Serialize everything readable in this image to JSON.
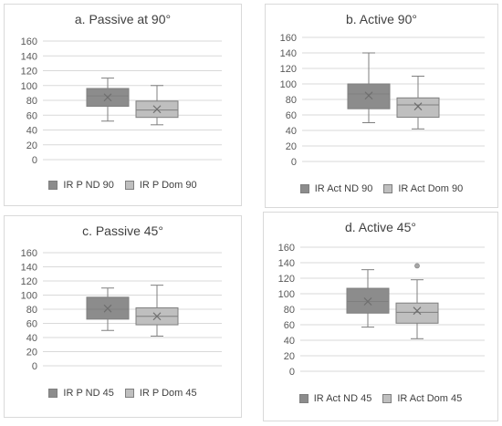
{
  "colors": {
    "nd": "#8c8c8c",
    "dom": "#bfbfbf",
    "grid": "#d9d9d9",
    "text": "#595959"
  },
  "chart_data": [
    {
      "type": "box",
      "title": "a. Passive at 90°",
      "ylim": [
        0,
        160
      ],
      "yticks": [
        "0",
        "20",
        "40",
        "60",
        "80",
        "100",
        "120",
        "140",
        "160"
      ],
      "grid": true,
      "legend_position": "bottom",
      "series": [
        {
          "name": "IR P ND 90",
          "min": 52,
          "q1": 72,
          "median": 86,
          "q3": 96,
          "max": 110,
          "mean": 84,
          "outliers": []
        },
        {
          "name": "IR P Dom 90",
          "min": 47,
          "q1": 57,
          "median": 67,
          "q3": 79,
          "max": 100,
          "mean": 68,
          "outliers": []
        }
      ]
    },
    {
      "type": "box",
      "title": "b. Active 90°",
      "ylim": [
        0,
        160
      ],
      "yticks": [
        "0",
        "20",
        "40",
        "60",
        "80",
        "100",
        "120",
        "140",
        "160"
      ],
      "grid": true,
      "legend_position": "bottom",
      "series": [
        {
          "name": "IR Act  ND 90",
          "min": 50,
          "q1": 68,
          "median": 87,
          "q3": 100,
          "max": 140,
          "mean": 85,
          "outliers": []
        },
        {
          "name": "IR Act Dom 90",
          "min": 42,
          "q1": 57,
          "median": 73,
          "q3": 82,
          "max": 110,
          "mean": 71,
          "outliers": []
        }
      ]
    },
    {
      "type": "box",
      "title": "c. Passive 45°",
      "ylim": [
        0,
        160
      ],
      "yticks": [
        "0",
        "20",
        "40",
        "60",
        "80",
        "100",
        "120",
        "140",
        "160"
      ],
      "grid": true,
      "legend_position": "bottom",
      "series": [
        {
          "name": "IR P ND 45",
          "min": 50,
          "q1": 66,
          "median": 80,
          "q3": 97,
          "max": 110,
          "mean": 81,
          "outliers": []
        },
        {
          "name": "IR  P Dom 45",
          "min": 42,
          "q1": 58,
          "median": 70,
          "q3": 82,
          "max": 114,
          "mean": 70,
          "outliers": []
        }
      ]
    },
    {
      "type": "box",
      "title": "d. Active 45°",
      "ylim": [
        0,
        160
      ],
      "yticks": [
        "0",
        "20",
        "40",
        "60",
        "80",
        "100",
        "120",
        "140",
        "160"
      ],
      "grid": true,
      "legend_position": "bottom",
      "series": [
        {
          "name": "IR  Act ND 45",
          "min": 57,
          "q1": 75,
          "median": 90,
          "q3": 107,
          "max": 131,
          "mean": 90,
          "outliers": []
        },
        {
          "name": "IR Act Dom 45",
          "min": 42,
          "q1": 62,
          "median": 76,
          "q3": 88,
          "max": 118,
          "mean": 78,
          "outliers": [
            136
          ]
        }
      ]
    }
  ]
}
